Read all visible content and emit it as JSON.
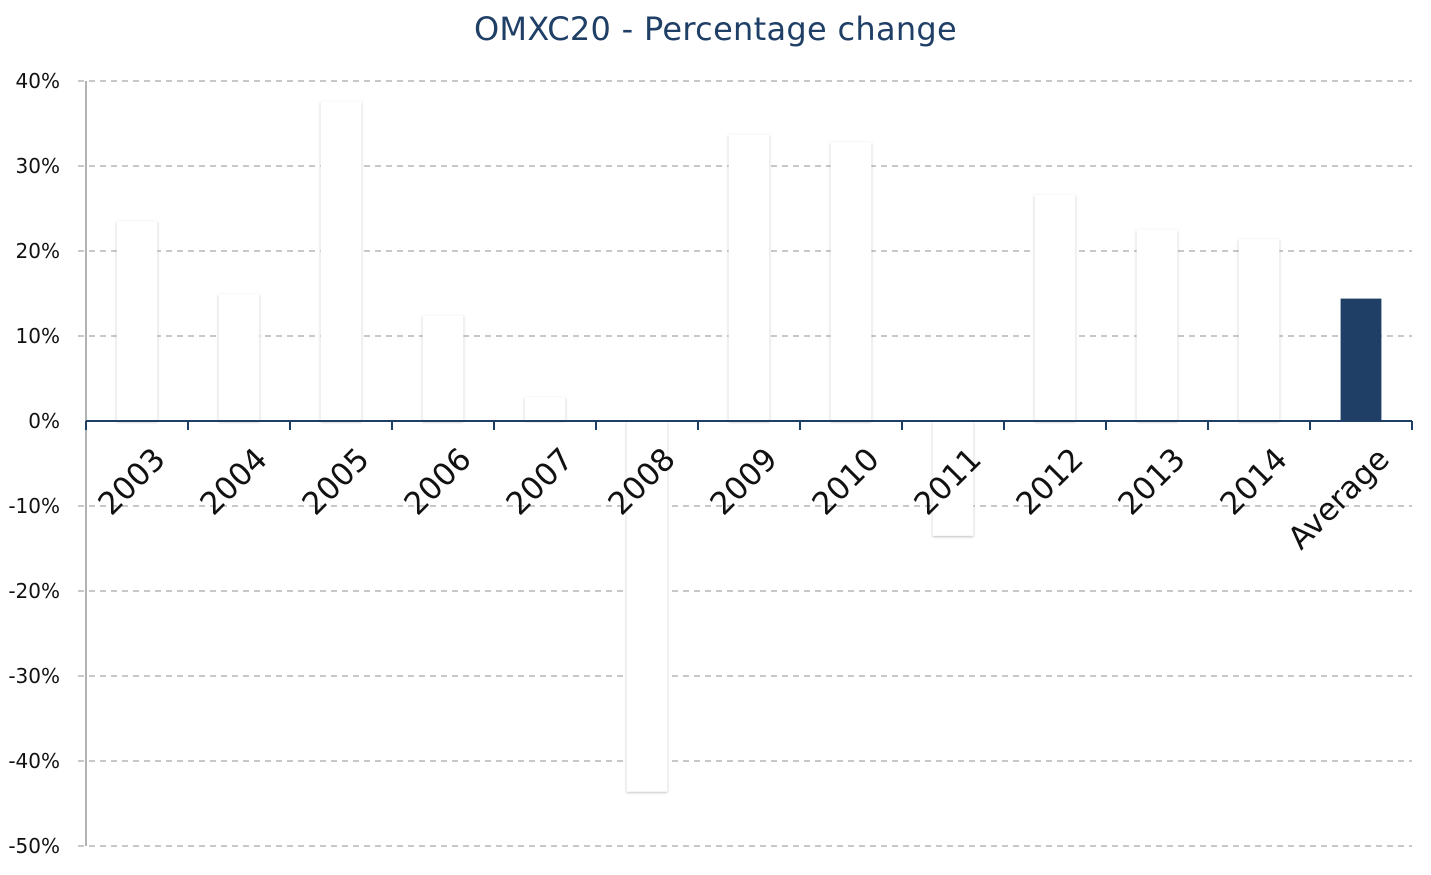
{
  "chart_data": {
    "type": "bar",
    "title": "OMXC20 - Percentage change",
    "xlabel": "",
    "ylabel": "",
    "categories": [
      "2003",
      "2004",
      "2005",
      "2006",
      "2007",
      "2008",
      "2009",
      "2010",
      "2011",
      "2012",
      "2013",
      "2014",
      "Average"
    ],
    "values": [
      23.5,
      14.9,
      37.6,
      12.4,
      2.8,
      -43.6,
      33.7,
      32.8,
      -13.5,
      26.6,
      22.5,
      21.4,
      14.4
    ],
    "value_unit": "%",
    "ylim": [
      -50,
      40
    ],
    "yticks": [
      "40%",
      "30%",
      "20%",
      "10%",
      "0%",
      "-10%",
      "-20%",
      "-30%",
      "-40%",
      "-50%"
    ],
    "ytick_values": [
      40,
      30,
      20,
      10,
      0,
      -10,
      -20,
      -30,
      -40,
      -50
    ],
    "grid": true,
    "legend": "none",
    "colors": {
      "highlight_bar": "#1f3f66",
      "other_bars": "#ffffff",
      "axis": "#1f3f66",
      "grid": "#b5b5b5",
      "title": "#1f3f66"
    },
    "highlight_category": "Average"
  }
}
